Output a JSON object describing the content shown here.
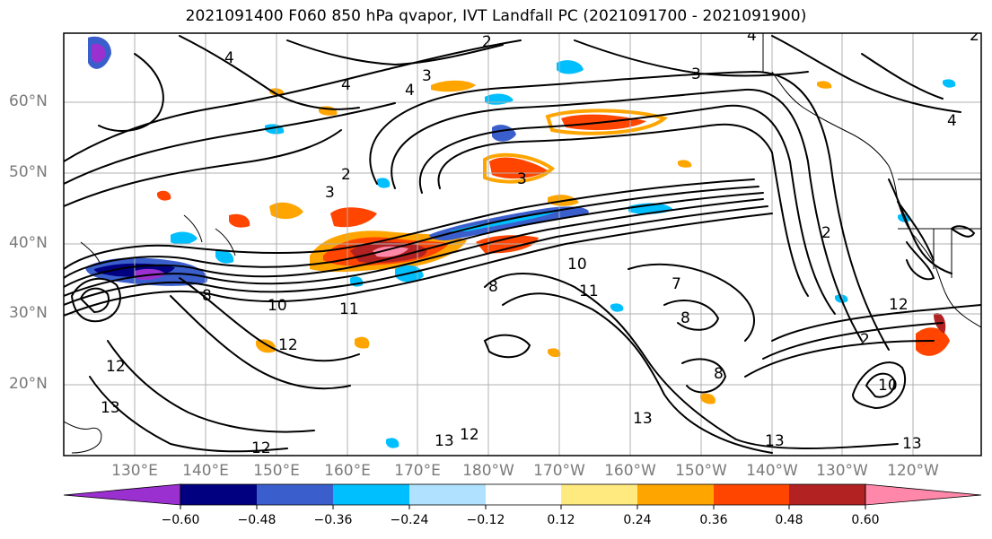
{
  "title": "2021091400 F060 850 hPa qvapor, IVT Landfall PC (2021091700 - 2021091900)",
  "latitude_labels": [
    "60°N",
    "50°N",
    "40°N",
    "30°N",
    "20°N"
  ],
  "longitude_labels": [
    "130°E",
    "140°E",
    "150°E",
    "160°E",
    "170°E",
    "180°W",
    "170°W",
    "160°W",
    "150°W",
    "140°W",
    "130°W",
    "120°W"
  ],
  "colorbar": {
    "tick_labels": [
      "−0.60",
      "−0.48",
      "−0.36",
      "−0.24",
      "−0.12",
      "0.12",
      "0.24",
      "0.36",
      "0.48",
      "0.60"
    ],
    "colors": [
      "#9b30d0",
      "#000080",
      "#3a5fcd",
      "#00bfff",
      "#b0e2ff",
      "#ffffff",
      "#ffea80",
      "#ffa500",
      "#ff4500",
      "#b22222",
      "#ff88aa"
    ]
  },
  "contour_labels": [
    "2",
    "3",
    "4",
    "7",
    "8",
    "10",
    "11",
    "12",
    "13"
  ],
  "colors": {
    "coast": "#000000",
    "grid": "#b0b0b0",
    "axis_label": "#7a7a7a"
  }
}
